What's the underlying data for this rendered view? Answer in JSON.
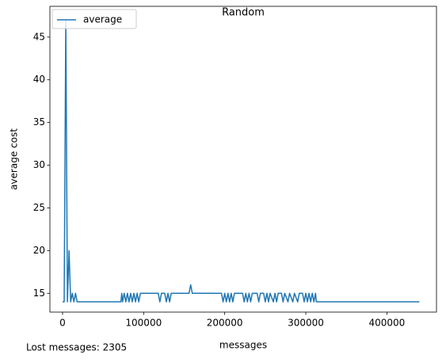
{
  "chart_data": {
    "type": "line",
    "title": "Random",
    "xlabel": "messages",
    "ylabel": "average cost",
    "annotation": "Lost messages: 2305",
    "x": [
      0,
      2000,
      4000,
      6000,
      8000,
      10000,
      12000,
      14000,
      16000,
      18000,
      72000,
      73000,
      74000,
      76000,
      78000,
      80000,
      82000,
      84000,
      86000,
      88000,
      90000,
      92000,
      94000,
      96000,
      98000,
      100000,
      118000,
      120000,
      122000,
      126000,
      128000,
      130000,
      132000,
      134000,
      156000,
      158000,
      160000,
      196000,
      198000,
      200000,
      202000,
      204000,
      206000,
      208000,
      210000,
      212000,
      222000,
      224000,
      226000,
      228000,
      230000,
      232000,
      234000,
      240000,
      242000,
      244000,
      248000,
      250000,
      252000,
      254000,
      256000,
      260000,
      262000,
      264000,
      266000,
      270000,
      272000,
      274000,
      278000,
      280000,
      284000,
      286000,
      290000,
      292000,
      296000,
      298000,
      300000,
      302000,
      304000,
      306000,
      308000,
      310000,
      312000,
      313000,
      440000
    ],
    "series": [
      {
        "name": "average",
        "color": "#1f77b4",
        "values": [
          14,
          14,
          47,
          14,
          20,
          14,
          15,
          14,
          15,
          14,
          14,
          15,
          14,
          15,
          14,
          15,
          14,
          15,
          14,
          15,
          14,
          15,
          14,
          15,
          15,
          15,
          15,
          14,
          15,
          15,
          14,
          15,
          14,
          15,
          15,
          16,
          15,
          15,
          14,
          15,
          14,
          15,
          14,
          15,
          14,
          15,
          15,
          14,
          15,
          14,
          15,
          14,
          15,
          15,
          14,
          15,
          15,
          14,
          15,
          14,
          15,
          14,
          15,
          14,
          15,
          15,
          14,
          15,
          14,
          15,
          14,
          15,
          14,
          15,
          15,
          14,
          15,
          14,
          15,
          14,
          15,
          14,
          15,
          14,
          14
        ]
      }
    ],
    "xlim": [
      -15600,
      461200
    ],
    "ylim": [
      12.8,
      48.6
    ],
    "xticks": [
      0,
      100000,
      200000,
      300000,
      400000
    ],
    "yticks": [
      15,
      20,
      25,
      30,
      35,
      40,
      45
    ],
    "legend": "upper left"
  }
}
